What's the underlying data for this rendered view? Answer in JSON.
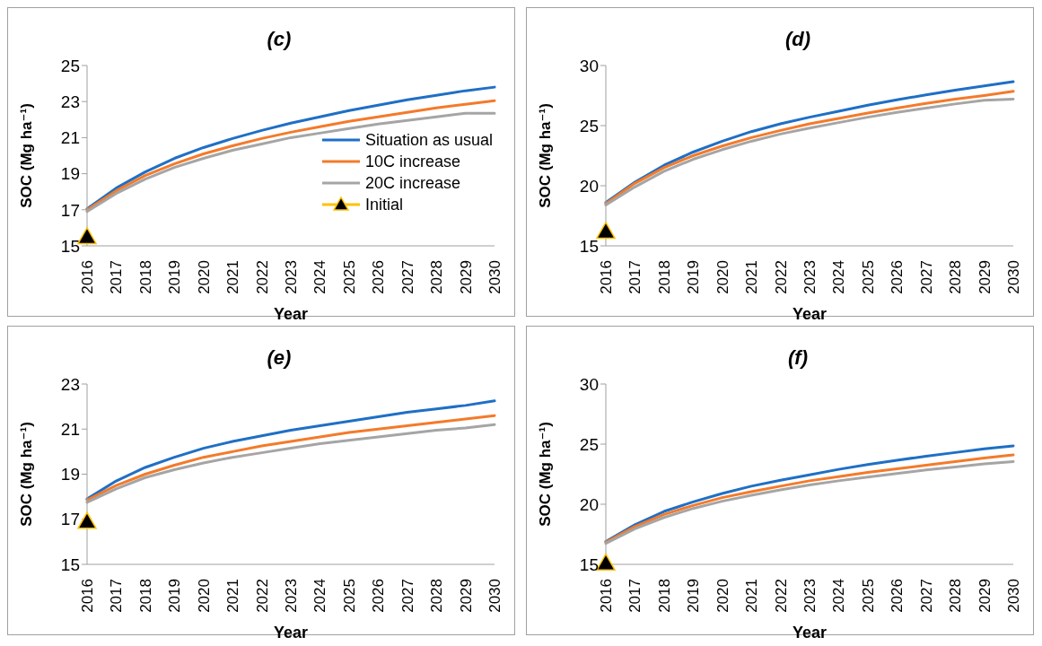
{
  "chart_data": [
    {
      "type": "line",
      "title": "(c)",
      "xlabel": "Year",
      "ylabel": "SOC (Mg ha⁻¹)",
      "categories": [
        "2016",
        "2017",
        "2018",
        "2019",
        "2020",
        "2021",
        "2022",
        "2023",
        "2024",
        "2025",
        "2026",
        "2027",
        "2028",
        "2029",
        "2030"
      ],
      "ylim": [
        15,
        25
      ],
      "yticks": [
        15,
        17,
        19,
        21,
        23,
        25
      ],
      "grid": false,
      "legend": "bottom right",
      "series": [
        {
          "name": "Situation as usual",
          "color": "#1f6fc5",
          "values": [
            17.05,
            18.2,
            19.1,
            19.85,
            20.45,
            20.95,
            21.4,
            21.8,
            22.15,
            22.5,
            22.8,
            23.1,
            23.35,
            23.6,
            23.8
          ]
        },
        {
          "name": "10C increase",
          "color": "#f47a2a",
          "values": [
            17.0,
            18.05,
            18.9,
            19.55,
            20.1,
            20.55,
            20.95,
            21.3,
            21.6,
            21.9,
            22.15,
            22.4,
            22.65,
            22.85,
            23.05
          ]
        },
        {
          "name": "20C increase",
          "color": "#a5a5a5",
          "values": [
            16.9,
            17.9,
            18.7,
            19.35,
            19.85,
            20.3,
            20.65,
            21.0,
            21.25,
            21.5,
            21.75,
            21.95,
            22.15,
            22.35,
            22.35
          ]
        },
        {
          "name": "Initial",
          "type": "scatter",
          "marker": "triangle",
          "color": "#ffc000",
          "values": [
            15.5,
            null,
            null,
            null,
            null,
            null,
            null,
            null,
            null,
            null,
            null,
            null,
            null,
            null,
            null
          ]
        }
      ]
    },
    {
      "type": "line",
      "title": "(d)",
      "xlabel": "Year",
      "ylabel": "SOC (Mg ha⁻¹)",
      "categories": [
        "2016",
        "2017",
        "2018",
        "2019",
        "2020",
        "2021",
        "2022",
        "2023",
        "2024",
        "2025",
        "2026",
        "2027",
        "2028",
        "2029",
        "2030"
      ],
      "ylim": [
        15,
        30
      ],
      "yticks": [
        15,
        20,
        25,
        30
      ],
      "grid": false,
      "series": [
        {
          "color": "#1f6fc5",
          "values": [
            18.6,
            20.3,
            21.7,
            22.8,
            23.7,
            24.5,
            25.15,
            25.7,
            26.2,
            26.7,
            27.15,
            27.55,
            27.95,
            28.3,
            28.65
          ]
        },
        {
          "color": "#f47a2a",
          "values": [
            18.5,
            20.2,
            21.5,
            22.5,
            23.3,
            24.0,
            24.6,
            25.15,
            25.6,
            26.05,
            26.45,
            26.85,
            27.2,
            27.5,
            27.85
          ]
        },
        {
          "color": "#a5a5a5",
          "values": [
            18.4,
            19.9,
            21.2,
            22.2,
            23.0,
            23.7,
            24.3,
            24.8,
            25.25,
            25.7,
            26.1,
            26.45,
            26.8,
            27.1,
            27.2
          ]
        },
        {
          "type": "scatter",
          "marker": "triangle",
          "color": "#ffc000",
          "values": [
            16.2,
            null,
            null,
            null,
            null,
            null,
            null,
            null,
            null,
            null,
            null,
            null,
            null,
            null,
            null
          ]
        }
      ]
    },
    {
      "type": "line",
      "title": "(e)",
      "xlabel": "Year",
      "ylabel": "SOC (Mg ha⁻¹)",
      "categories": [
        "2016",
        "2017",
        "2018",
        "2019",
        "2020",
        "2021",
        "2022",
        "2023",
        "2024",
        "2025",
        "2026",
        "2027",
        "2028",
        "2029",
        "2030"
      ],
      "ylim": [
        15,
        23
      ],
      "yticks": [
        15,
        17,
        19,
        21,
        23
      ],
      "grid": false,
      "series": [
        {
          "color": "#1f6fc5",
          "values": [
            17.9,
            18.7,
            19.3,
            19.75,
            20.15,
            20.45,
            20.7,
            20.95,
            21.15,
            21.35,
            21.55,
            21.75,
            21.9,
            22.05,
            22.25
          ]
        },
        {
          "color": "#f47a2a",
          "values": [
            17.85,
            18.5,
            19.0,
            19.4,
            19.75,
            20.0,
            20.25,
            20.45,
            20.65,
            20.85,
            21.0,
            21.15,
            21.3,
            21.45,
            21.6
          ]
        },
        {
          "color": "#a5a5a5",
          "values": [
            17.75,
            18.35,
            18.85,
            19.2,
            19.5,
            19.75,
            19.95,
            20.15,
            20.35,
            20.5,
            20.65,
            20.8,
            20.95,
            21.05,
            21.2
          ]
        },
        {
          "type": "scatter",
          "marker": "triangle",
          "color": "#ffc000",
          "values": [
            16.9,
            null,
            null,
            null,
            null,
            null,
            null,
            null,
            null,
            null,
            null,
            null,
            null,
            null,
            null
          ]
        }
      ]
    },
    {
      "type": "line",
      "title": "(f)",
      "xlabel": "Year",
      "ylabel": "SOC (Mg ha⁻¹)",
      "categories": [
        "2016",
        "2017",
        "2018",
        "2019",
        "2020",
        "2021",
        "2022",
        "2023",
        "2024",
        "2025",
        "2026",
        "2027",
        "2028",
        "2029",
        "2030"
      ],
      "ylim": [
        15,
        30
      ],
      "yticks": [
        15,
        20,
        25,
        30
      ],
      "grid": false,
      "series": [
        {
          "color": "#1f6fc5",
          "values": [
            16.9,
            18.3,
            19.4,
            20.2,
            20.9,
            21.5,
            22.0,
            22.45,
            22.9,
            23.3,
            23.65,
            24.0,
            24.3,
            24.6,
            24.85
          ]
        },
        {
          "color": "#f47a2a",
          "values": [
            16.85,
            18.15,
            19.15,
            19.9,
            20.55,
            21.05,
            21.5,
            21.95,
            22.3,
            22.65,
            22.95,
            23.25,
            23.55,
            23.85,
            24.1
          ]
        },
        {
          "color": "#a5a5a5",
          "values": [
            16.75,
            17.95,
            18.9,
            19.65,
            20.25,
            20.75,
            21.2,
            21.6,
            21.95,
            22.25,
            22.55,
            22.85,
            23.1,
            23.35,
            23.55
          ]
        },
        {
          "type": "scatter",
          "marker": "triangle",
          "color": "#ffc000",
          "values": [
            15.1,
            null,
            null,
            null,
            null,
            null,
            null,
            null,
            null,
            null,
            null,
            null,
            null,
            null,
            null
          ]
        }
      ]
    }
  ]
}
